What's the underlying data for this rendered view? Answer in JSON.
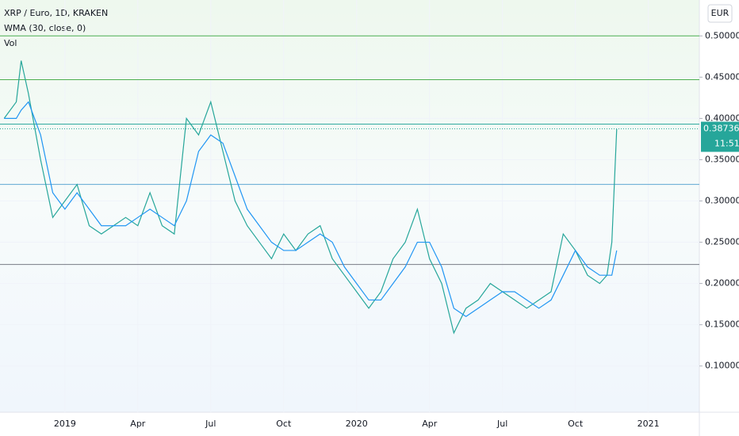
{
  "chart_data": {
    "type": "line",
    "title": "XRP / Euro, 1D, KRAKEN",
    "indicator": "WMA (30, close, 0)",
    "volume_label": "Vol",
    "currency": "EUR",
    "last_price": 0.38736,
    "countdown": "11:51",
    "x": [
      -2.5,
      -2,
      -1.8,
      -1.5,
      -1,
      -0.5,
      0,
      0.5,
      1,
      1.5,
      2,
      2.5,
      3,
      3.5,
      4,
      4.5,
      5,
      5.5,
      6,
      6.5,
      7,
      7.5,
      8,
      8.5,
      9,
      9.5,
      10,
      10.5,
      11,
      11.5,
      12,
      12.5,
      13,
      13.5,
      14,
      14.5,
      15,
      15.5,
      16,
      16.5,
      17,
      17.5,
      18,
      18.5,
      19,
      19.5,
      20,
      20.5,
      21,
      21.5,
      22,
      22.3,
      22.5,
      22.7
    ],
    "series": [
      {
        "name": "XRP / Euro",
        "color": "#26a69a",
        "values": [
          0.4,
          0.42,
          0.47,
          0.43,
          0.35,
          0.28,
          0.3,
          0.32,
          0.27,
          0.26,
          0.27,
          0.28,
          0.27,
          0.31,
          0.27,
          0.26,
          0.4,
          0.38,
          0.42,
          0.36,
          0.3,
          0.27,
          0.25,
          0.23,
          0.26,
          0.24,
          0.26,
          0.27,
          0.23,
          0.21,
          0.19,
          0.17,
          0.19,
          0.23,
          0.25,
          0.29,
          0.23,
          0.2,
          0.14,
          0.17,
          0.18,
          0.2,
          0.19,
          0.18,
          0.17,
          0.18,
          0.19,
          0.26,
          0.24,
          0.21,
          0.2,
          0.21,
          0.25,
          0.387
        ]
      },
      {
        "name": "WMA (30, close, 0)",
        "color": "#2196f3",
        "values": [
          0.4,
          0.4,
          0.41,
          0.42,
          0.38,
          0.31,
          0.29,
          0.31,
          0.29,
          0.27,
          0.27,
          0.27,
          0.28,
          0.29,
          0.28,
          0.27,
          0.3,
          0.36,
          0.38,
          0.37,
          0.33,
          0.29,
          0.27,
          0.25,
          0.24,
          0.24,
          0.25,
          0.26,
          0.25,
          0.22,
          0.2,
          0.18,
          0.18,
          0.2,
          0.22,
          0.25,
          0.25,
          0.22,
          0.17,
          0.16,
          0.17,
          0.18,
          0.19,
          0.19,
          0.18,
          0.17,
          0.18,
          0.21,
          0.24,
          0.22,
          0.21,
          0.21,
          0.21,
          0.24
        ]
      }
    ],
    "levels": [
      {
        "value": 0.5,
        "color": "#4caf50"
      },
      {
        "value": 0.447,
        "color": "#4caf50"
      },
      {
        "value": 0.393,
        "color": "#26a69a"
      },
      {
        "value": 0.32,
        "color": "#5fa8d3"
      },
      {
        "value": 0.223,
        "color": "#787b86"
      }
    ],
    "xlim": [
      -2.67,
      26.1
    ],
    "ylim": [
      0.044,
      0.5435
    ],
    "yticks": [
      {
        "value": 0.1,
        "label": "0.10000"
      },
      {
        "value": 0.15,
        "label": "0.15000"
      },
      {
        "value": 0.2,
        "label": "0.20000"
      },
      {
        "value": 0.25,
        "label": "0.25000"
      },
      {
        "value": 0.3,
        "label": "0.30000"
      },
      {
        "value": 0.35,
        "label": "0.35000"
      },
      {
        "value": 0.4,
        "label": "0.40000"
      },
      {
        "value": 0.45,
        "label": "0.45000"
      },
      {
        "value": 0.5,
        "label": "0.50000"
      }
    ],
    "xticks": [
      {
        "value": 0,
        "label": "2019"
      },
      {
        "value": 3,
        "label": "Apr"
      },
      {
        "value": 6,
        "label": "Jul"
      },
      {
        "value": 9,
        "label": "Oct"
      },
      {
        "value": 12,
        "label": "2020"
      },
      {
        "value": 15,
        "label": "Apr"
      },
      {
        "value": 18,
        "label": "Jul"
      },
      {
        "value": 21,
        "label": "Oct"
      },
      {
        "value": 24,
        "label": "2021"
      }
    ],
    "grid": true
  }
}
